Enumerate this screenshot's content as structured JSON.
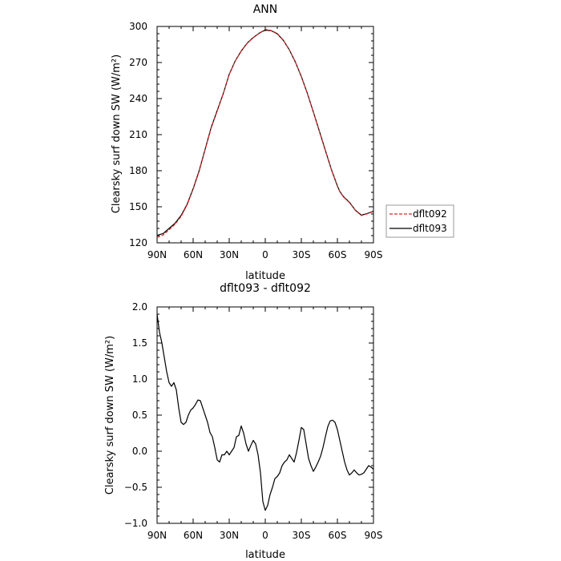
{
  "chart_data": [
    {
      "type": "line",
      "title": "ANN",
      "xlabel": "latitude",
      "ylabel": "Clearsky surf down SW (W/m²)",
      "xlim": [
        90,
        -90
      ],
      "ylim": [
        120,
        300
      ],
      "x_ticks": [
        90,
        60,
        30,
        0,
        -30,
        -60,
        -90
      ],
      "x_tick_labels": [
        "90N",
        "60N",
        "30N",
        "0",
        "30S",
        "60S",
        "90S"
      ],
      "y_ticks": [
        120,
        150,
        180,
        210,
        240,
        270,
        300
      ],
      "y_tick_labels": [
        "120",
        "150",
        "180",
        "210",
        "240",
        "270",
        "300"
      ],
      "grid": false,
      "legend_position": "right",
      "x": [
        90,
        85,
        80,
        75,
        70,
        65,
        60,
        55,
        50,
        45,
        40,
        35,
        30,
        25,
        20,
        15,
        10,
        5,
        0,
        -5,
        -10,
        -15,
        -20,
        -25,
        -30,
        -35,
        -40,
        -45,
        -50,
        -55,
        -60,
        -62,
        -65,
        -70,
        -75,
        -80,
        -85,
        -90
      ],
      "series": [
        {
          "name": "dflt092",
          "color": "#d62728",
          "dash": "dashed",
          "values": [
            124.5,
            126.5,
            130.8,
            135.5,
            142.0,
            151.6,
            164.6,
            179.5,
            197.6,
            215.5,
            229.6,
            243.9,
            260.1,
            271.2,
            279.4,
            286.0,
            290.6,
            294.3,
            297.7,
            296.6,
            294.2,
            288.7,
            280.7,
            270.6,
            258.2,
            244.2,
            228.7,
            212.6,
            196.6,
            180.8,
            166.9,
            162.5,
            158.2,
            153.5,
            146.9,
            142.7,
            144.2,
            146.0
          ]
        },
        {
          "name": "dflt093",
          "color": "#000000",
          "dash": "solid",
          "values": [
            126.2,
            127.7,
            132.0,
            136.4,
            142.8,
            152.1,
            165.1,
            180.0,
            198.0,
            216.0,
            230.0,
            244.0,
            260.2,
            271.3,
            279.6,
            286.2,
            290.8,
            294.5,
            297.0,
            296.4,
            293.9,
            288.5,
            280.6,
            270.5,
            258.3,
            244.4,
            228.9,
            212.9,
            196.9,
            181.1,
            167.3,
            162.8,
            158.5,
            153.8,
            147.1,
            143.0,
            144.5,
            146.3
          ]
        }
      ]
    },
    {
      "type": "line",
      "title": "dflt093 - dflt092",
      "xlabel": "latitude",
      "ylabel": "Clearsky surf down SW (W/m²)",
      "xlim": [
        90,
        -90
      ],
      "ylim": [
        -1.0,
        2.0
      ],
      "x_ticks": [
        90,
        60,
        30,
        0,
        -30,
        -60,
        -90
      ],
      "x_tick_labels": [
        "90N",
        "60N",
        "30N",
        "0",
        "30S",
        "60S",
        "90S"
      ],
      "y_ticks": [
        -1.0,
        -0.5,
        0.0,
        0.5,
        1.0,
        1.5,
        2.0
      ],
      "y_tick_labels": [
        "−1.0",
        "−0.5",
        "0.0",
        "0.5",
        "1.0",
        "1.5",
        "2.0"
      ],
      "grid": false,
      "x": [
        90,
        88,
        86,
        84,
        82,
        80,
        78,
        76,
        74,
        72,
        70,
        68,
        66,
        64,
        62,
        60,
        58,
        56,
        54,
        52,
        50,
        48,
        46,
        44,
        42,
        40,
        38,
        36,
        34,
        32,
        30,
        28,
        26,
        24,
        22,
        20,
        18,
        16,
        14,
        12,
        10,
        8,
        6,
        4,
        2,
        0,
        -2,
        -4,
        -6,
        -8,
        -10,
        -12,
        -14,
        -16,
        -18,
        -20,
        -22,
        -24,
        -26,
        -28,
        -30,
        -32,
        -34,
        -36,
        -38,
        -40,
        -42,
        -44,
        -46,
        -48,
        -50,
        -52,
        -54,
        -56,
        -58,
        -60,
        -62,
        -64,
        -66,
        -68,
        -70,
        -72,
        -74,
        -76,
        -78,
        -80,
        -82,
        -84,
        -86,
        -88,
        -90
      ],
      "series": [
        {
          "color": "#000000",
          "dash": "solid",
          "values": [
            1.9,
            1.65,
            1.5,
            1.3,
            1.1,
            0.95,
            0.9,
            0.95,
            0.85,
            0.6,
            0.4,
            0.37,
            0.4,
            0.5,
            0.57,
            0.6,
            0.65,
            0.71,
            0.7,
            0.6,
            0.5,
            0.4,
            0.26,
            0.2,
            0.05,
            -0.12,
            -0.15,
            -0.05,
            -0.05,
            0.0,
            -0.05,
            0.0,
            0.05,
            0.2,
            0.22,
            0.35,
            0.25,
            0.1,
            0.0,
            0.08,
            0.15,
            0.1,
            -0.05,
            -0.3,
            -0.7,
            -0.82,
            -0.75,
            -0.6,
            -0.5,
            -0.38,
            -0.35,
            -0.3,
            -0.2,
            -0.15,
            -0.12,
            -0.05,
            -0.1,
            -0.15,
            -0.02,
            0.15,
            0.33,
            0.3,
            0.1,
            -0.1,
            -0.2,
            -0.28,
            -0.22,
            -0.15,
            -0.07,
            0.05,
            0.2,
            0.34,
            0.42,
            0.43,
            0.4,
            0.3,
            0.15,
            0.0,
            -0.15,
            -0.26,
            -0.33,
            -0.3,
            -0.26,
            -0.3,
            -0.33,
            -0.32,
            -0.3,
            -0.25,
            -0.2,
            -0.22,
            -0.25
          ]
        }
      ]
    }
  ]
}
